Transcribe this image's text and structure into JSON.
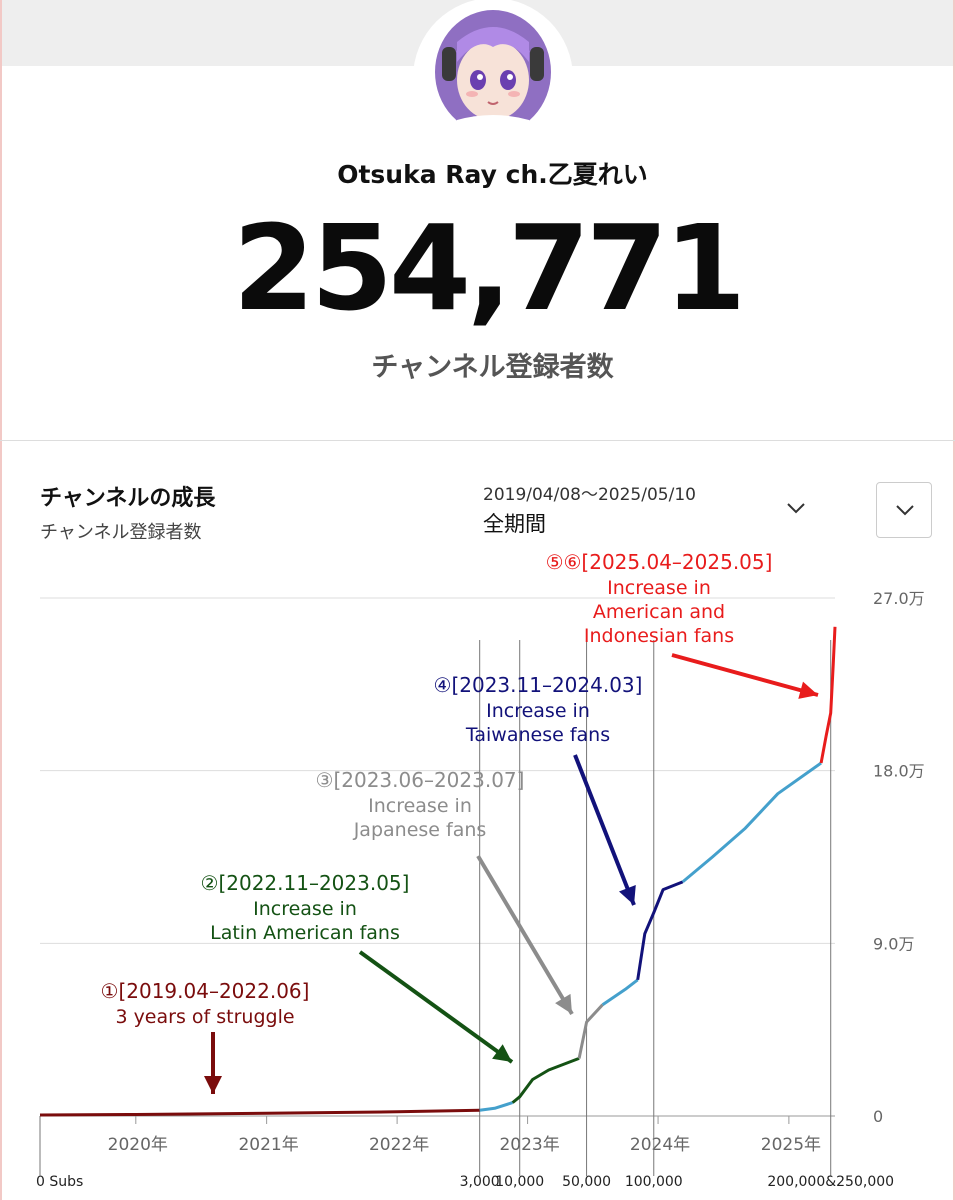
{
  "header": {
    "channel_name": "Otsuka Ray ch.乙夏れい",
    "subscriber_count": "254,771",
    "subscriber_label": "チャンネル登録者数"
  },
  "growth_panel": {
    "title": "チャンネルの成長",
    "subtitle": "チャンネル登録者数",
    "date_range": "2019/04/08～2025/05/10",
    "period": "全期間"
  },
  "chart_data": {
    "type": "line",
    "ylim": [
      0,
      270000
    ],
    "y_ticks": [
      {
        "value": 0,
        "label": "0"
      },
      {
        "value": 90000,
        "label": "9.0万"
      },
      {
        "value": 180000,
        "label": "18.0万"
      },
      {
        "value": 270000,
        "label": "27.0万"
      }
    ],
    "x_range": [
      "2019-04-08",
      "2025-05-10"
    ],
    "year_ticks": [
      {
        "date": "2020-01-01",
        "label": "2020年"
      },
      {
        "date": "2021-01-01",
        "label": "2021年"
      },
      {
        "date": "2022-01-01",
        "label": "2022年"
      },
      {
        "date": "2023-01-01",
        "label": "2023年"
      },
      {
        "date": "2024-01-01",
        "label": "2024年"
      },
      {
        "date": "2025-01-01",
        "label": "2025年"
      }
    ],
    "milestones": [
      {
        "date": "2019-04-08",
        "label": "0 Subs"
      },
      {
        "date": "2022-08-20",
        "label": "3,000"
      },
      {
        "date": "2022-12-10",
        "label": "10,000"
      },
      {
        "date": "2023-06-15",
        "label": "50,000"
      },
      {
        "date": "2023-12-20",
        "label": "100,000"
      },
      {
        "date": "2025-04-28",
        "label": "200,000&250,000"
      }
    ],
    "series": [
      {
        "color": "#7a0c0c",
        "points": [
          [
            "2019-04-08",
            500
          ],
          [
            "2020-01-01",
            800
          ],
          [
            "2021-01-01",
            1400
          ],
          [
            "2022-01-01",
            2200
          ],
          [
            "2022-08-20",
            3000
          ]
        ]
      },
      {
        "color": "#44a0cc",
        "points": [
          [
            "2022-08-20",
            3000
          ],
          [
            "2022-10-01",
            4000
          ],
          [
            "2022-11-20",
            7000
          ]
        ]
      },
      {
        "color": "#145214",
        "points": [
          [
            "2022-11-20",
            7000
          ],
          [
            "2022-12-10",
            10000
          ],
          [
            "2023-01-15",
            19000
          ],
          [
            "2023-03-01",
            24000
          ],
          [
            "2023-05-25",
            30000
          ]
        ]
      },
      {
        "color": "#8c8c8c",
        "points": [
          [
            "2023-05-25",
            30000
          ],
          [
            "2023-06-15",
            49000
          ],
          [
            "2023-07-30",
            58000
          ]
        ]
      },
      {
        "color": "#44a0cc",
        "points": [
          [
            "2023-07-30",
            58000
          ],
          [
            "2023-10-01",
            66000
          ],
          [
            "2023-11-05",
            71000
          ]
        ]
      },
      {
        "color": "#12127a",
        "points": [
          [
            "2023-11-05",
            71000
          ],
          [
            "2023-11-25",
            95000
          ],
          [
            "2023-12-20",
            106000
          ],
          [
            "2024-01-15",
            118000
          ],
          [
            "2024-03-10",
            122000
          ]
        ]
      },
      {
        "color": "#44a0cc",
        "points": [
          [
            "2024-03-10",
            122000
          ],
          [
            "2024-06-01",
            135000
          ],
          [
            "2024-09-01",
            150000
          ],
          [
            "2024-12-01",
            168000
          ],
          [
            "2025-04-01",
            184000
          ]
        ]
      },
      {
        "color": "#e81c1c",
        "points": [
          [
            "2025-04-01",
            184000
          ],
          [
            "2025-04-15",
            198000
          ],
          [
            "2025-04-28",
            210000
          ],
          [
            "2025-05-05",
            235000
          ],
          [
            "2025-05-10",
            255000
          ]
        ]
      }
    ],
    "annotations": [
      {
        "title": "①[2019.04–2022.06]",
        "text": [
          "3 years of struggle"
        ],
        "color": "#7a0c0c"
      },
      {
        "title": "②[2022.11–2023.05]",
        "text": [
          "Increase in",
          "Latin American fans"
        ],
        "color": "#145214"
      },
      {
        "title": "③[2023.06–2023.07]",
        "text": [
          "Increase in",
          "Japanese fans"
        ],
        "color": "#8c8c8c"
      },
      {
        "title": "④[2023.11–2024.03]",
        "text": [
          "Increase in",
          "Taiwanese fans"
        ],
        "color": "#12127a"
      },
      {
        "title": "⑤⑥[2025.04–2025.05]",
        "text": [
          "Increase in",
          "American and",
          "Indonesian fans"
        ],
        "color": "#e81c1c"
      }
    ]
  }
}
